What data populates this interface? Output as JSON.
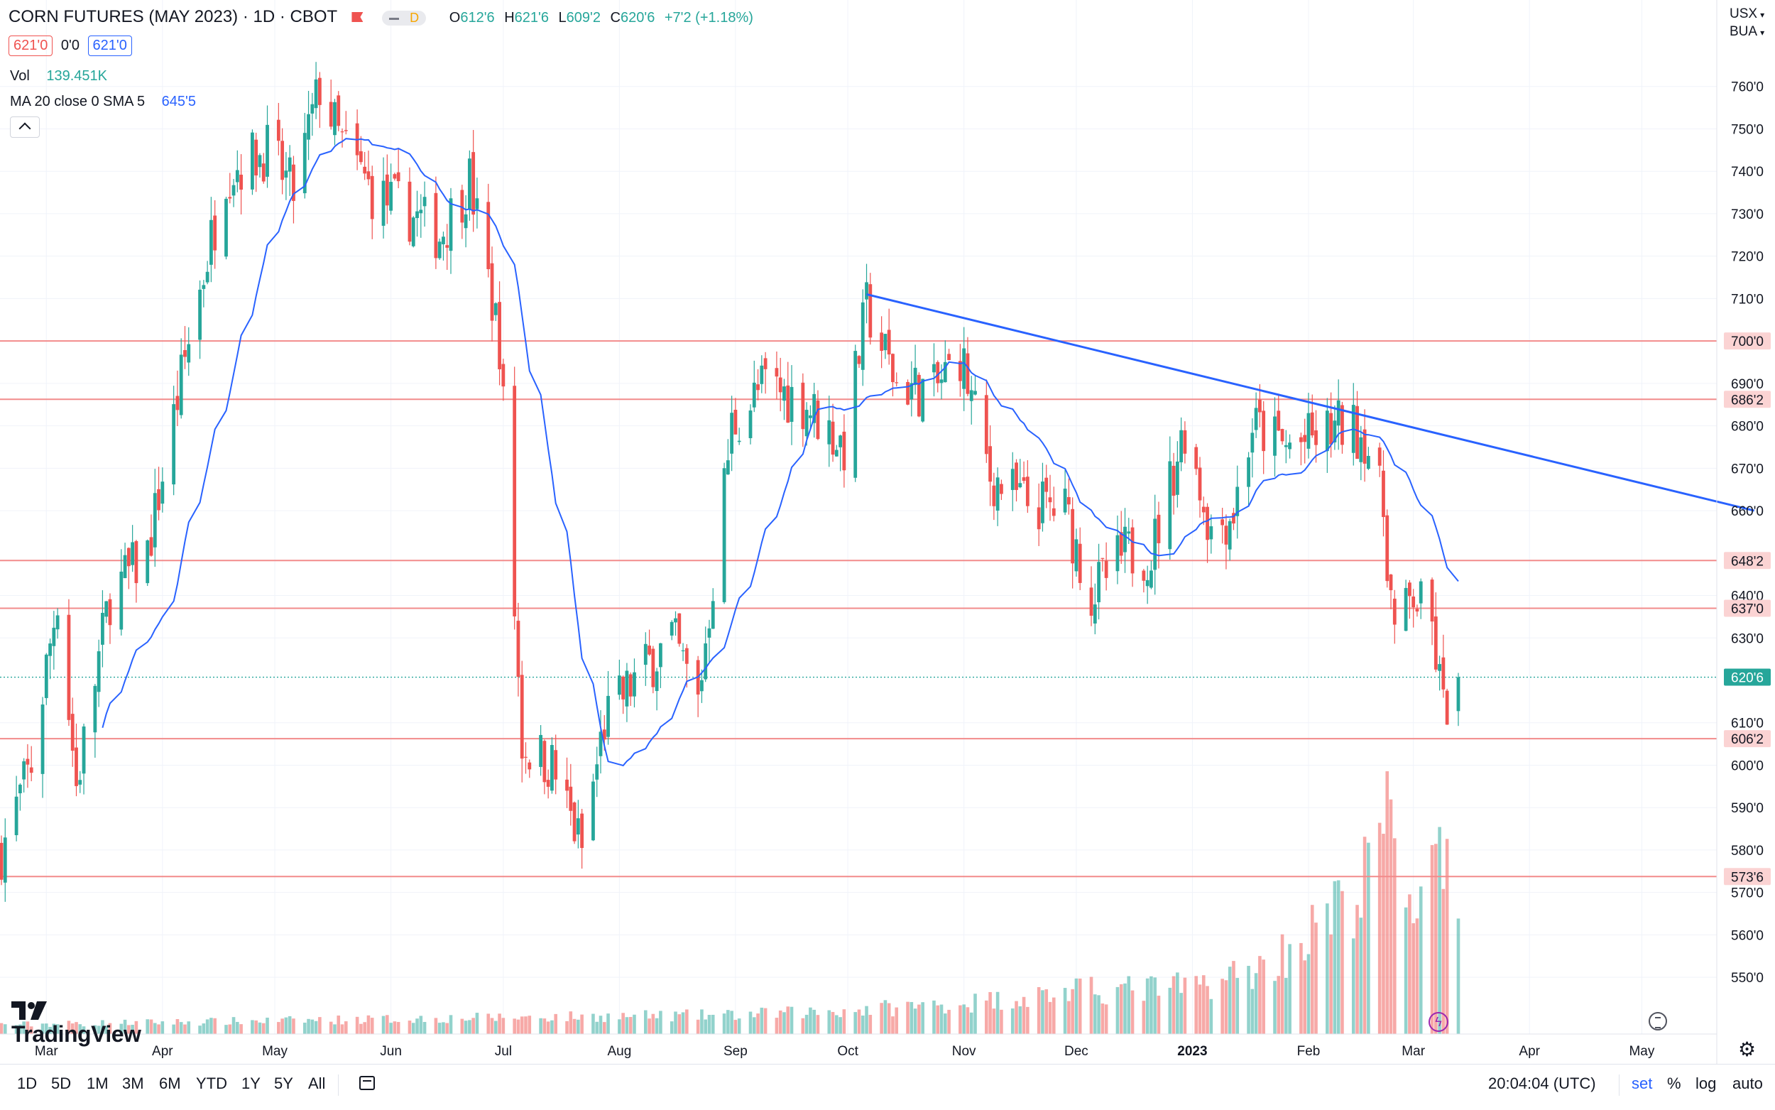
{
  "header": {
    "symbol_title": "CORN FUTURES (MAY 2023) · 1D · CBOT",
    "badge_d": "D",
    "ohlc": {
      "o_label": "O",
      "o": "612'6",
      "h_label": "H",
      "h": "621'6",
      "l_label": "L",
      "l": "609'2",
      "c_label": "C",
      "c": "620'6",
      "chg": "+7'2 (+1.18%)"
    },
    "bid": "621'0",
    "spread": "0'0",
    "ask": "621'0",
    "vol_label": "Vol",
    "vol_value": "139.451K",
    "ma_label": "MA 20 close 0 SMA 5",
    "ma_value": "645'5",
    "currency": "USX",
    "unit": "BUA"
  },
  "colors": {
    "up": "#26a69a",
    "down": "#ef5350",
    "ma": "#2962ff",
    "trend": "#2962ff",
    "hline": "#f28b8b",
    "price_tag": "#26a69a"
  },
  "chart_data": {
    "type": "candlestick",
    "y_axis_ticks": [
      "760'0",
      "750'0",
      "740'0",
      "730'0",
      "720'0",
      "710'0",
      "690'0",
      "680'0",
      "670'0",
      "660'0",
      "640'0",
      "630'0",
      "610'0",
      "600'0",
      "590'0",
      "580'0",
      "570'0",
      "560'0",
      "550'0"
    ],
    "ylim": [
      545,
      770
    ],
    "x_axis_ticks": [
      "Mar",
      "Apr",
      "May",
      "Jun",
      "Jul",
      "Aug",
      "Sep",
      "Oct",
      "Nov",
      "Dec",
      "2023",
      "Feb",
      "Mar",
      "Apr",
      "May"
    ],
    "horizontal_levels": [
      {
        "value": 700.0,
        "label": "700'0"
      },
      {
        "value": 686.25,
        "label": "686'2"
      },
      {
        "value": 648.25,
        "label": "648'2"
      },
      {
        "value": 637.0,
        "label": "637'0"
      },
      {
        "value": 606.25,
        "label": "606'2"
      },
      {
        "value": 573.75,
        "label": "573'6"
      }
    ],
    "last_price": {
      "value": 620.75,
      "label": "620'6"
    },
    "trendline": {
      "from": {
        "date": "2022-10-06",
        "price": 711.0
      },
      "to": {
        "date": "2023-05-31",
        "price": 660.0
      }
    },
    "close_path": [
      [
        "2022-02-17",
        580
      ],
      [
        "2022-02-25",
        600
      ],
      [
        "2022-03-04",
        640
      ],
      [
        "2022-03-09",
        595
      ],
      [
        "2022-03-18",
        640
      ],
      [
        "2022-03-28",
        650
      ],
      [
        "2022-04-08",
        700
      ],
      [
        "2022-04-18",
        740
      ],
      [
        "2022-04-29",
        745
      ],
      [
        "2022-05-06",
        735
      ],
      [
        "2022-05-13",
        760
      ],
      [
        "2022-05-18",
        748
      ],
      [
        "2022-05-27",
        735
      ],
      [
        "2022-06-06",
        730
      ],
      [
        "2022-06-14",
        725
      ],
      [
        "2022-06-22",
        738
      ],
      [
        "2022-06-30",
        700
      ],
      [
        "2022-07-06",
        605
      ],
      [
        "2022-07-14",
        600
      ],
      [
        "2022-07-22",
        580
      ],
      [
        "2022-07-28",
        610
      ],
      [
        "2022-08-05",
        620
      ],
      [
        "2022-08-15",
        630
      ],
      [
        "2022-08-22",
        615
      ],
      [
        "2022-08-31",
        680
      ],
      [
        "2022-09-09",
        690
      ],
      [
        "2022-09-20",
        685
      ],
      [
        "2022-09-30",
        675
      ],
      [
        "2022-10-06",
        708
      ],
      [
        "2022-10-14",
        690
      ],
      [
        "2022-10-24",
        688
      ],
      [
        "2022-10-31",
        697
      ],
      [
        "2022-11-08",
        668
      ],
      [
        "2022-11-17",
        662
      ],
      [
        "2022-11-28",
        660
      ],
      [
        "2022-12-05",
        640
      ],
      [
        "2022-12-14",
        650
      ],
      [
        "2022-12-21",
        650
      ],
      [
        "2022-12-30",
        680
      ],
      [
        "2023-01-06",
        655
      ],
      [
        "2023-01-12",
        660
      ],
      [
        "2023-01-17",
        680
      ],
      [
        "2023-01-26",
        675
      ],
      [
        "2023-02-03",
        677
      ],
      [
        "2023-02-10",
        680
      ],
      [
        "2023-02-16",
        678
      ],
      [
        "2023-02-21",
        660
      ],
      [
        "2023-02-24",
        630
      ],
      [
        "2023-03-01",
        640
      ],
      [
        "2023-03-06",
        632
      ],
      [
        "2023-03-09",
        613
      ],
      [
        "2023-03-13",
        620.75
      ]
    ],
    "volume_profile": [
      [
        "2022-02-17",
        0.04
      ],
      [
        "2022-07-01",
        0.07
      ],
      [
        "2022-09-01",
        0.08
      ],
      [
        "2022-10-01",
        0.1
      ],
      [
        "2022-11-01",
        0.13
      ],
      [
        "2022-12-01",
        0.18
      ],
      [
        "2023-01-01",
        0.2
      ],
      [
        "2023-01-20",
        0.28
      ],
      [
        "2023-02-01",
        0.42
      ],
      [
        "2023-02-15",
        0.6
      ],
      [
        "2023-02-22",
        0.95
      ],
      [
        "2023-03-01",
        0.55
      ],
      [
        "2023-03-07",
        0.7
      ],
      [
        "2023-03-13",
        0.55
      ]
    ]
  },
  "brand": {
    "name": "TradingView"
  },
  "bottom_bar": {
    "ranges": [
      "1D",
      "5D",
      "1M",
      "3M",
      "6M",
      "YTD",
      "1Y",
      "5Y",
      "All"
    ],
    "clock": "20:04:04 (UTC)",
    "options": {
      "set": "set",
      "pct": "%",
      "log": "log",
      "auto": "auto"
    }
  }
}
